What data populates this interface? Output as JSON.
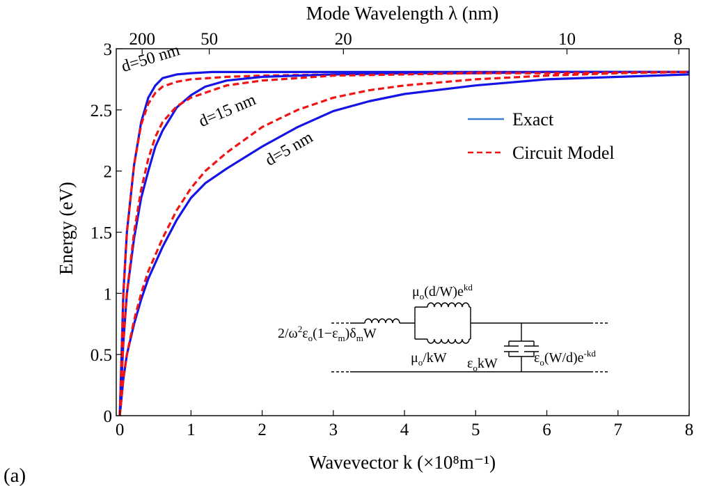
{
  "figure_label": "(a)",
  "colors": {
    "exact": "#1414e6",
    "circuit": "#f01414",
    "frame": "#000000",
    "legend_exact": "#3a7bd5"
  },
  "chart_data": {
    "type": "line",
    "xlabel": "Wavevector k (×10⁸m⁻¹)",
    "ylabel": "Energy (eV)",
    "top_axis_label": "Mode Wavelength λ (nm)",
    "xlim": [
      -0.05,
      8
    ],
    "ylim": [
      0,
      3
    ],
    "x_ticks": [
      0,
      1,
      2,
      3,
      4,
      5,
      6,
      7,
      8
    ],
    "y_ticks": [
      0,
      0.5,
      1,
      1.5,
      2,
      2.5,
      3
    ],
    "top_ticks": [
      {
        "label": "200",
        "wavelength_nm": 200
      },
      {
        "label": "50",
        "wavelength_nm": 50
      },
      {
        "label": "20",
        "wavelength_nm": 20
      },
      {
        "label": "10",
        "wavelength_nm": 10
      },
      {
        "label": "8",
        "wavelength_nm": 8
      }
    ],
    "grid": false,
    "legend_position": "right",
    "legend": [
      {
        "label": "Exact",
        "style": "solid",
        "colorKey": "exact"
      },
      {
        "label": "Circuit Model",
        "style": "dashed",
        "colorKey": "circuit"
      }
    ],
    "series": [
      {
        "curve": "d=50 nm",
        "style": "solid",
        "x": [
          0,
          0.05,
          0.1,
          0.2,
          0.3,
          0.4,
          0.5,
          0.6,
          0.8,
          1.0,
          1.3,
          1.5,
          2,
          3,
          4,
          6,
          8
        ],
        "y": [
          0,
          1.0,
          1.5,
          2.05,
          2.4,
          2.6,
          2.7,
          2.76,
          2.79,
          2.8,
          2.81,
          2.81,
          2.81,
          2.81,
          2.81,
          2.81,
          2.81
        ]
      },
      {
        "curve": "d=50 nm",
        "style": "dashed",
        "x": [
          0,
          0.05,
          0.1,
          0.2,
          0.3,
          0.4,
          0.5,
          0.6,
          0.8,
          1.0,
          1.5,
          2,
          3,
          4,
          6,
          8
        ],
        "y": [
          0,
          1.0,
          1.5,
          2.05,
          2.38,
          2.55,
          2.64,
          2.69,
          2.73,
          2.75,
          2.77,
          2.78,
          2.79,
          2.8,
          2.81,
          2.81
        ]
      },
      {
        "curve": "d=15 nm",
        "style": "solid",
        "x": [
          0,
          0.05,
          0.1,
          0.2,
          0.3,
          0.4,
          0.5,
          0.6,
          0.8,
          1.0,
          1.2,
          1.5,
          2,
          2.5,
          3,
          4,
          5,
          6,
          8
        ],
        "y": [
          0,
          0.6,
          1.0,
          1.45,
          1.78,
          2.0,
          2.2,
          2.33,
          2.52,
          2.62,
          2.69,
          2.74,
          2.77,
          2.78,
          2.79,
          2.8,
          2.8,
          2.81,
          2.81
        ]
      },
      {
        "curve": "d=15 nm",
        "style": "dashed",
        "x": [
          0,
          0.05,
          0.1,
          0.2,
          0.3,
          0.4,
          0.5,
          0.6,
          0.8,
          1.0,
          1.3,
          1.5,
          2,
          2.5,
          3,
          4,
          5,
          6,
          8
        ],
        "y": [
          0,
          0.6,
          1.0,
          1.5,
          1.85,
          2.1,
          2.28,
          2.4,
          2.53,
          2.6,
          2.66,
          2.7,
          2.74,
          2.76,
          2.78,
          2.79,
          2.8,
          2.8,
          2.81
        ]
      },
      {
        "curve": "d=5 nm",
        "style": "solid",
        "x": [
          0,
          0.05,
          0.1,
          0.2,
          0.3,
          0.4,
          0.6,
          0.8,
          1.0,
          1.2,
          1.5,
          2,
          2.5,
          3,
          3.5,
          4,
          5,
          6,
          7,
          8
        ],
        "y": [
          0,
          0.3,
          0.5,
          0.75,
          0.95,
          1.12,
          1.38,
          1.6,
          1.78,
          1.9,
          2.02,
          2.2,
          2.36,
          2.49,
          2.57,
          2.63,
          2.7,
          2.75,
          2.77,
          2.79
        ]
      },
      {
        "curve": "d=5 nm",
        "style": "dashed",
        "x": [
          0,
          0.05,
          0.1,
          0.2,
          0.3,
          0.4,
          0.6,
          0.8,
          1.0,
          1.2,
          1.5,
          2,
          2.5,
          3,
          3.5,
          4,
          5,
          6,
          7,
          8
        ],
        "y": [
          0,
          0.3,
          0.5,
          0.78,
          1.0,
          1.18,
          1.45,
          1.68,
          1.86,
          2.0,
          2.15,
          2.36,
          2.5,
          2.6,
          2.66,
          2.7,
          2.75,
          2.78,
          2.8,
          2.81
        ]
      }
    ],
    "annotations": [
      {
        "text": "d=50 nm",
        "x": 0.05,
        "y": 2.81,
        "rotation": -17
      },
      {
        "text": "d=15 nm",
        "x": 1.15,
        "y": 2.36,
        "rotation": -23
      },
      {
        "text": "d=5 nm",
        "x": 2.1,
        "y": 2.04,
        "rotation": -30
      }
    ]
  },
  "circuit": {
    "inductor_top_label": {
      "base": "μ",
      "sub": "o",
      "mid": "(d/W)e",
      "sup": "kd"
    },
    "inductor_bottom_label": {
      "base": "μ",
      "sub": "o",
      "mid": "/kW"
    },
    "kinetic_label": [
      {
        "t": "2/ω",
        "k": "n"
      },
      {
        "t": "2",
        "k": "sup"
      },
      {
        "t": "ε",
        "k": "n"
      },
      {
        "t": "o",
        "k": "sub"
      },
      {
        "t": "(1−ε",
        "k": "n"
      },
      {
        "t": "m",
        "k": "sub"
      },
      {
        "t": ")δ",
        "k": "n"
      },
      {
        "t": "m",
        "k": "sub"
      },
      {
        "t": "W",
        "k": "n"
      }
    ],
    "cap_left_label": {
      "base": "ε",
      "sub": "o",
      "mid": "kW"
    },
    "cap_right_label": {
      "base": "ε",
      "sub": "o",
      "mid": "(W/d)e",
      "sup": "-kd"
    }
  }
}
